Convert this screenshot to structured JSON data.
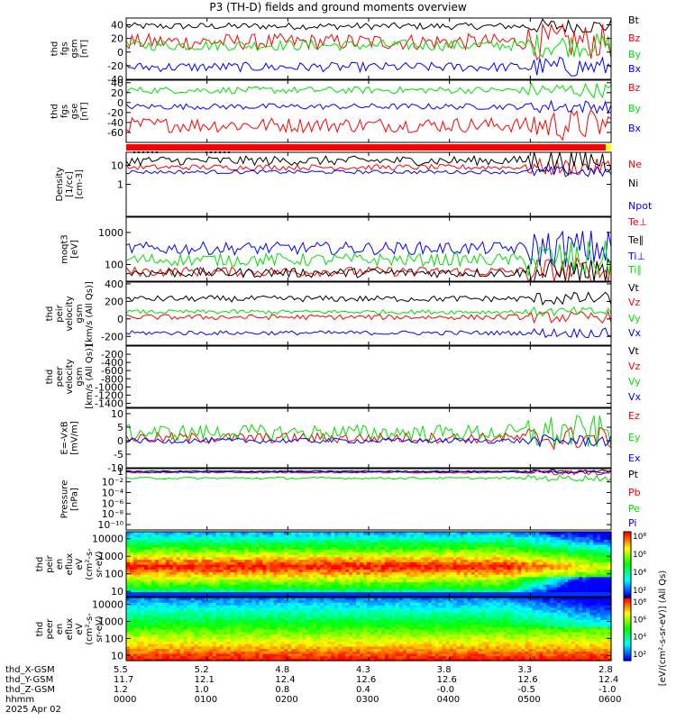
{
  "title": "P3 (TH-D) fields and ground moments overview",
  "colors": {
    "black": "#000000",
    "red": "#ff0000",
    "green": "#00e000",
    "blue": "#0000ff",
    "bar_red": "#ff0000",
    "bar_yellow": "#ffff00"
  },
  "chart_data": [
    {
      "type": "line",
      "id": "fgs_gsm",
      "ylabel": [
        "thd",
        "fgs",
        "gsm",
        "[nT]"
      ],
      "ylim": [
        -40,
        50
      ],
      "yticks": [
        "40",
        "20",
        "0",
        "-20",
        "-40"
      ],
      "ytick_values": [
        40,
        20,
        0,
        -20,
        -40
      ],
      "series": [
        {
          "name": "Bt",
          "color": "black",
          "level": 38,
          "noise": 5
        },
        {
          "name": "Bz",
          "color": "red",
          "level": 15,
          "noise": 12
        },
        {
          "name": "By",
          "color": "green",
          "level": 10,
          "noise": 8
        },
        {
          "name": "Bx",
          "color": "blue",
          "level": -22,
          "noise": 7
        }
      ]
    },
    {
      "type": "line",
      "id": "fgs_gse",
      "ylabel": [
        "thd",
        "fgs",
        "gse",
        "[nT]"
      ],
      "ylim": [
        -80,
        45
      ],
      "yticks": [
        "40",
        "20",
        "0",
        "-20",
        "-40",
        "-60"
      ],
      "ytick_values": [
        40,
        20,
        0,
        -20,
        -40,
        -60
      ],
      "series": [
        {
          "name": "Bz",
          "color": "red",
          "level": -45,
          "noise": 15
        },
        {
          "name": "By",
          "color": "green",
          "level": 25,
          "noise": 7
        },
        {
          "name": "Bx",
          "color": "blue",
          "level": -8,
          "noise": 6
        }
      ]
    },
    {
      "type": "bar",
      "id": "mode_bar",
      "series": [
        {
          "name": "",
          "color": "bar_red",
          "level": 1
        }
      ]
    },
    {
      "type": "line",
      "id": "density",
      "yscale": "log",
      "ylabel": [
        "Density",
        "[1/cc]",
        "[cm-3]"
      ],
      "ylim": [
        0.02,
        50
      ],
      "yticks": [
        "10",
        "1"
      ],
      "ytick_values": [
        10,
        1
      ],
      "series": [
        {
          "name": "Ne",
          "color": "red",
          "level": 8,
          "noise": 0.15
        },
        {
          "name": "Ni",
          "color": "black",
          "level": 18,
          "noise": 0.25
        },
        {
          "name": "Npot",
          "color": "blue",
          "level": 4.5,
          "noise": 0.1
        }
      ]
    },
    {
      "type": "line",
      "id": "temperature",
      "yscale": "log",
      "ylabel": [
        "moqt3",
        "[eV]"
      ],
      "ylim": [
        30,
        3000
      ],
      "yticks": [
        "1000",
        "100"
      ],
      "ytick_values": [
        1000,
        100
      ],
      "series": [
        {
          "name": "Te⊥",
          "color": "red",
          "level": 60,
          "noise": 0.15
        },
        {
          "name": "Te∥",
          "color": "black",
          "level": 55,
          "noise": 0.15
        },
        {
          "name": "Ti⊥",
          "color": "blue",
          "level": 320,
          "noise": 0.2
        },
        {
          "name": "Ti∥",
          "color": "green",
          "level": 140,
          "noise": 0.2
        }
      ]
    },
    {
      "type": "line",
      "id": "peir_velocity",
      "ylabel": [
        "thd",
        "peir",
        "velocity",
        "gsm",
        "[km/s (All Qs)]"
      ],
      "ylim": [
        -300,
        420
      ],
      "yticks": [
        "400",
        "200",
        "0",
        "-200"
      ],
      "ytick_values": [
        400,
        200,
        0,
        -200
      ],
      "series": [
        {
          "name": "Vt",
          "color": "black",
          "level": 230,
          "noise": 35
        },
        {
          "name": "Vz",
          "color": "red",
          "level": 20,
          "noise": 30
        },
        {
          "name": "Vy",
          "color": "green",
          "level": 80,
          "noise": 25
        },
        {
          "name": "Vx",
          "color": "blue",
          "level": -160,
          "noise": 25
        }
      ]
    },
    {
      "type": "line",
      "id": "peer_velocity",
      "ylabel": [
        "thd",
        "peer",
        "velocity",
        "gsm",
        "[km/s (All Qs)]"
      ],
      "ylim": [
        -1500,
        0
      ],
      "yticks": [
        "-200",
        "-400",
        "-600",
        "-800",
        "-1000",
        "-1200",
        "-1400"
      ],
      "ytick_values": [
        -200,
        -400,
        -600,
        -800,
        -1000,
        -1200,
        -1400
      ],
      "series": [
        {
          "name": "Vt",
          "color": "black"
        },
        {
          "name": "Vz",
          "color": "red"
        },
        {
          "name": "Vy",
          "color": "green"
        },
        {
          "name": "Vx",
          "color": "blue"
        }
      ]
    },
    {
      "type": "line",
      "id": "efield",
      "ylabel": [
        "E=-VxB",
        "[mV/m]"
      ],
      "ylim": [
        -10,
        12
      ],
      "yticks": [
        "10",
        "5",
        "0",
        "-5",
        "-10"
      ],
      "ytick_values": [
        10,
        5,
        0,
        -5,
        -10
      ],
      "series": [
        {
          "name": "Ez",
          "color": "red",
          "level": 1,
          "noise": 2
        },
        {
          "name": "Ey",
          "color": "green",
          "level": 3,
          "noise": 3
        },
        {
          "name": "Ex",
          "color": "blue",
          "level": 0,
          "noise": 1
        }
      ]
    },
    {
      "type": "line",
      "id": "pressure",
      "yscale": "log",
      "ylabel": [
        "Pressure",
        "[nPa]"
      ],
      "ylim": [
        1e-11,
        3
      ],
      "yticks": [
        "1",
        "10⁻²",
        "10⁻⁴",
        "10⁻⁶",
        "10⁻⁸",
        "10⁻¹⁰"
      ],
      "ytick_values": [
        1,
        0.01,
        0.0001,
        1e-06,
        1e-08,
        1e-10
      ],
      "series": [
        {
          "name": "Pt",
          "color": "black",
          "level": 1.0,
          "noise": 0.1
        },
        {
          "name": "Pb",
          "color": "red",
          "level": 0.6,
          "noise": 0.15
        },
        {
          "name": "Pe",
          "color": "green",
          "level": 0.05,
          "noise": 0.2
        },
        {
          "name": "Pi",
          "color": "blue",
          "level": 0.7,
          "noise": 0.1
        }
      ]
    },
    {
      "type": "heatmap",
      "id": "peir_spec",
      "yscale": "log",
      "ylabel": [
        "thd",
        "peir",
        "en",
        "eflux",
        "eV",
        "(cm²-s-",
        "sr-eV)"
      ],
      "ylim": [
        5,
        25000
      ],
      "yticks": [
        "10000",
        "1000",
        "100",
        "10"
      ],
      "ytick_values": [
        10000,
        1000,
        100,
        10
      ],
      "colorbar_ticks": [
        "10⁸",
        "10⁶",
        "10⁴",
        "10²"
      ]
    },
    {
      "type": "heatmap",
      "id": "peer_spec",
      "yscale": "log",
      "ylabel": [
        "thd",
        "peer",
        "en",
        "eflux",
        "eV",
        "(cm²-s-",
        "sr-eV)"
      ],
      "ylim": [
        5,
        25000
      ],
      "yticks": [
        "10000",
        "1000",
        "100",
        "10"
      ],
      "ytick_values": [
        10000,
        1000,
        100,
        10
      ],
      "colorbar_ticks": [
        "10⁸",
        "10⁶",
        "10⁴",
        "10²"
      ]
    }
  ],
  "colorbar_label": "[eV/(cm²-s-sr-eV)] (All Qs)",
  "xaxis": {
    "row_labels": [
      "thd_X-GSM",
      "thd_Y-GSM",
      "thd_Z-GSM",
      "hhmm",
      "2025 Apr 02"
    ],
    "columns": [
      {
        "x": "5.5",
        "y": "11.7",
        "z": "1.2",
        "t": "0000"
      },
      {
        "x": "5.2",
        "y": "12.1",
        "z": "1.0",
        "t": "0100"
      },
      {
        "x": "4.8",
        "y": "12.4",
        "z": "0.8",
        "t": "0200"
      },
      {
        "x": "4.3",
        "y": "12.6",
        "z": "0.4",
        "t": "0300"
      },
      {
        "x": "3.8",
        "y": "12.6",
        "z": "-0.0",
        "t": "0400"
      },
      {
        "x": "3.3",
        "y": "12.6",
        "z": "-0.5",
        "t": "0500"
      },
      {
        "x": "2.8",
        "y": "12.4",
        "z": "-1.0",
        "t": "0600"
      }
    ]
  }
}
